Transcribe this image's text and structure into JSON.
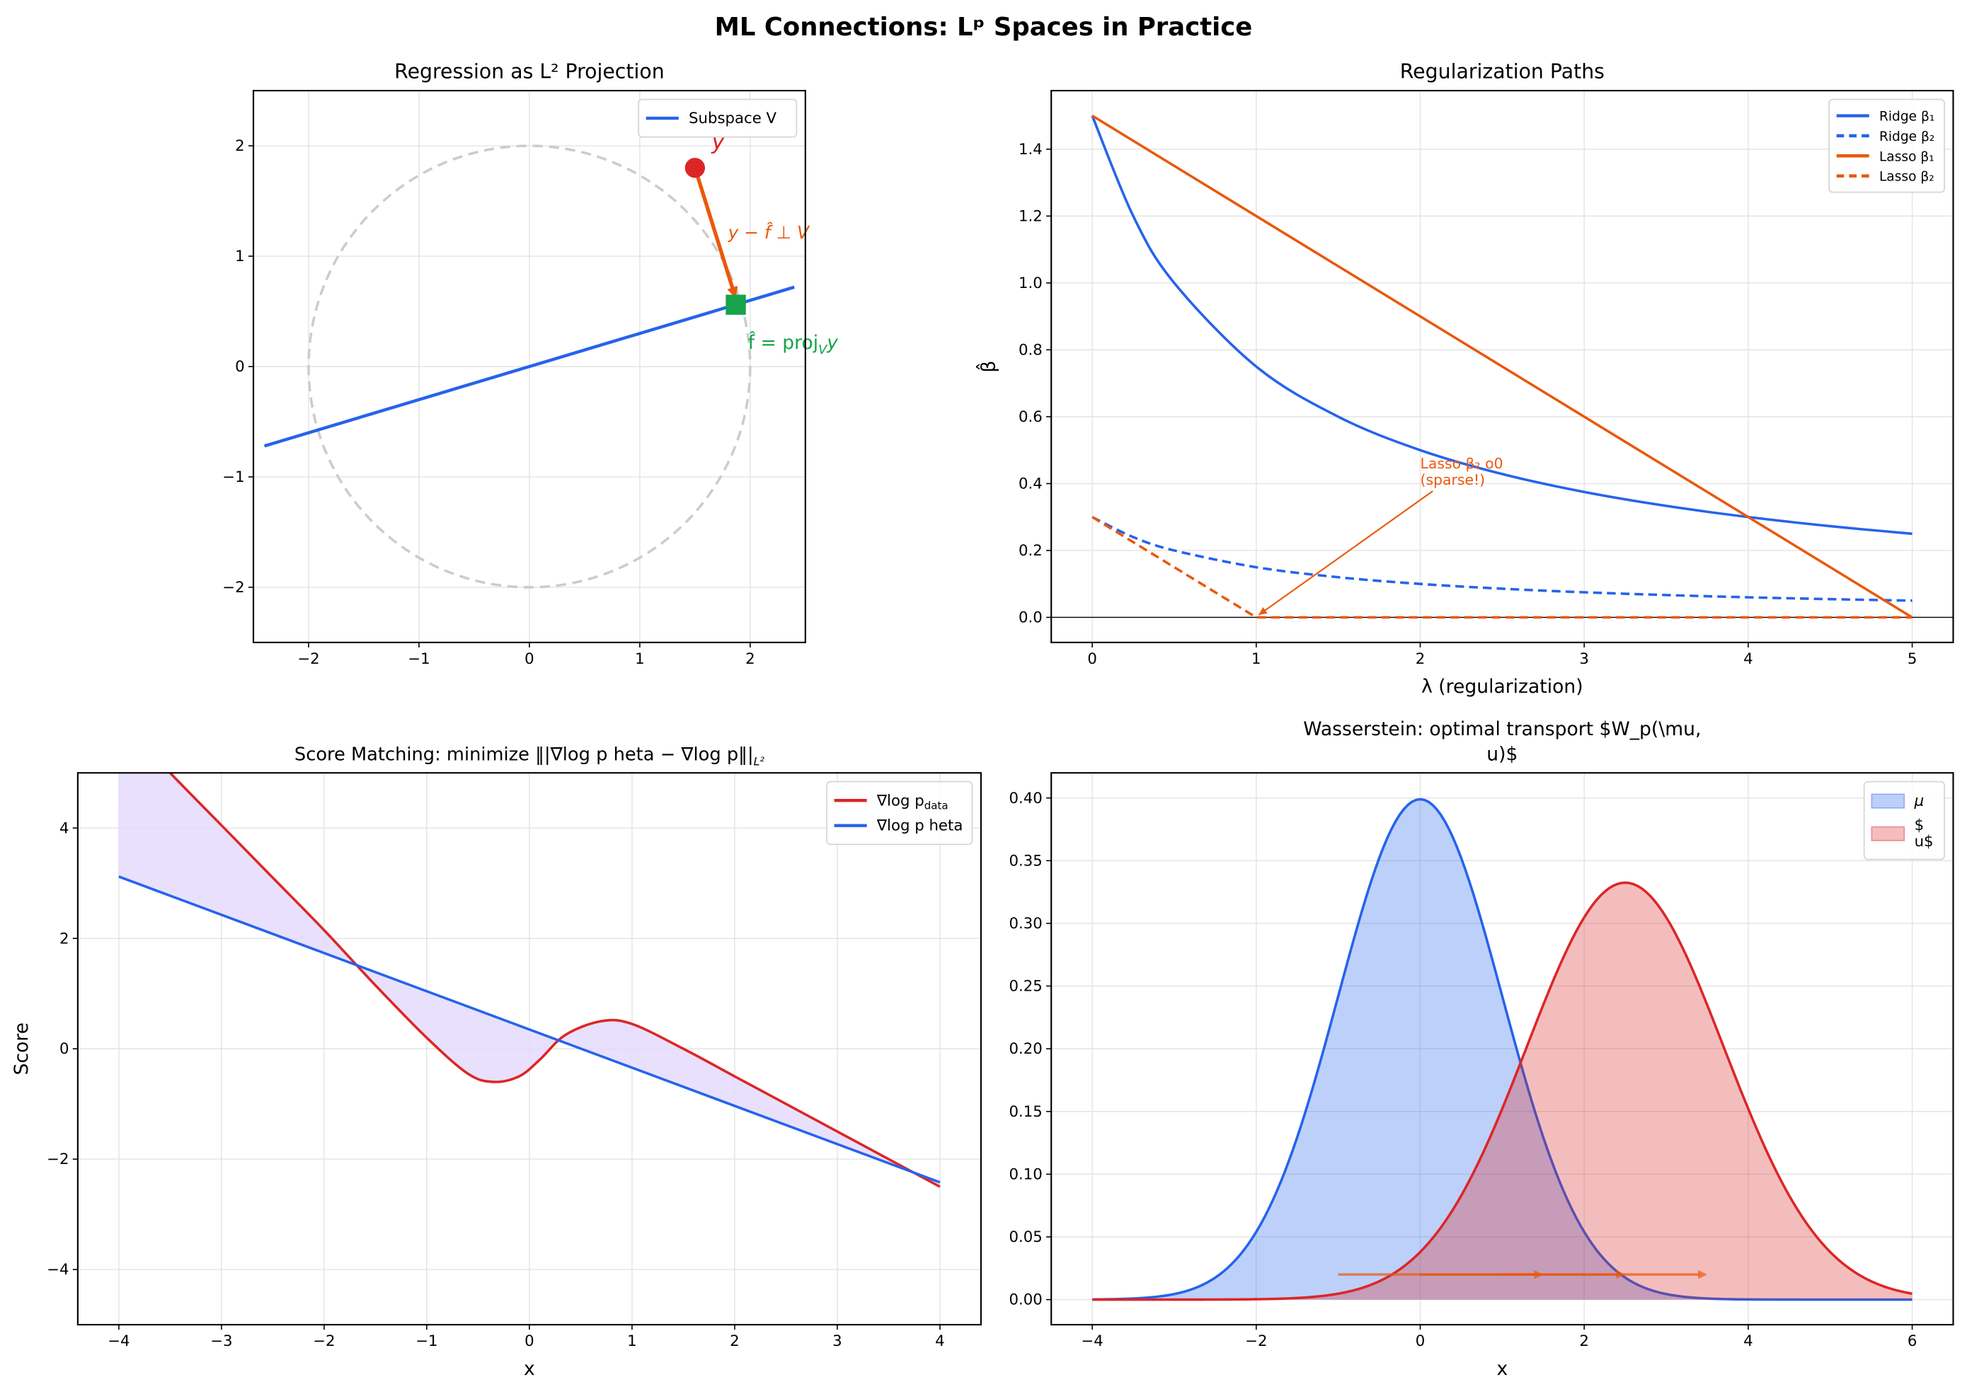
{
  "figure": {
    "title": "ML Connections: Lᵖ Spaces in Practice"
  },
  "colors": {
    "blue": "#2563eb",
    "red": "#dc2626",
    "orange": "#ea580c",
    "green": "#16a34a",
    "purple_fill": "#e4dafb",
    "circle": "#cccccc"
  },
  "chart_data": [
    {
      "type": "line",
      "title": "Regression as L² Projection",
      "xlabel": "",
      "ylabel": "",
      "xlim": [
        -2.5,
        2.5
      ],
      "ylim": [
        -2.5,
        2.5
      ],
      "grid": true,
      "legend_placement": "top-right",
      "xticks": [
        -2,
        -1,
        0,
        1,
        2
      ],
      "xtick_labels": [
        "−2",
        "−1",
        "0",
        "1",
        "2"
      ],
      "yticks": [
        -2,
        -1,
        0,
        1,
        2
      ],
      "ytick_labels": [
        "−2",
        "−1",
        "0",
        "1",
        "2"
      ],
      "series": [
        {
          "name": "Subspace V",
          "color": "#2563eb",
          "style": "solid",
          "width": 2.5,
          "points": [
            [
              -2.4,
              -0.72
            ],
            [
              2.4,
              0.72
            ]
          ]
        }
      ],
      "unit_circle": {
        "radius": 2,
        "color": "#cccccc",
        "style": "dashed"
      },
      "y_point": {
        "x": 1.5,
        "y": 1.8,
        "color": "#dc2626",
        "label": "y"
      },
      "projection": {
        "x": 1.87,
        "y": 0.56,
        "color": "#16a34a",
        "label_parts": [
          "f̂ = proj",
          "V",
          "y"
        ]
      },
      "residual_arrow": {
        "color": "#ea580c",
        "label": "y − f̂ ⊥ V"
      }
    },
    {
      "type": "line",
      "title": "Regularization Paths",
      "xlabel": "λ (regularization)",
      "ylabel": "β̂",
      "xlim": [
        -0.25,
        5.25
      ],
      "ylim": [
        -0.075,
        1.575
      ],
      "grid": true,
      "legend_placement": "top-right",
      "xticks": [
        0,
        1,
        2,
        3,
        4,
        5
      ],
      "xtick_labels": [
        "0",
        "1",
        "2",
        "3",
        "4",
        "5"
      ],
      "yticks": [
        0,
        0.2,
        0.4,
        0.6,
        0.8,
        1.0,
        1.2,
        1.4
      ],
      "ytick_labels": [
        "0.0",
        "0.2",
        "0.4",
        "0.6",
        "0.8",
        "1.0",
        "1.2",
        "1.4"
      ],
      "hline": 0,
      "series": [
        {
          "name": "Ridge β₁",
          "color": "#2563eb",
          "style": "solid",
          "smooth": true,
          "points": [
            [
              0,
              1.5
            ],
            [
              0.25,
              1.2
            ],
            [
              0.5,
              1.0
            ],
            [
              1,
              0.75
            ],
            [
              1.5,
              0.6
            ],
            [
              2,
              0.5
            ],
            [
              2.5,
              0.4286
            ],
            [
              3,
              0.375
            ],
            [
              3.5,
              0.3333
            ],
            [
              4,
              0.3
            ],
            [
              4.5,
              0.2727
            ],
            [
              5,
              0.25
            ]
          ]
        },
        {
          "name": "Ridge β₂",
          "color": "#2563eb",
          "style": "dashed",
          "smooth": true,
          "points": [
            [
              0,
              0.3
            ],
            [
              0.25,
              0.24
            ],
            [
              0.5,
              0.2
            ],
            [
              1,
              0.15
            ],
            [
              1.5,
              0.12
            ],
            [
              2,
              0.1
            ],
            [
              2.5,
              0.0857
            ],
            [
              3,
              0.075
            ],
            [
              3.5,
              0.0667
            ],
            [
              4,
              0.06
            ],
            [
              4.5,
              0.0545
            ],
            [
              5,
              0.05
            ]
          ]
        },
        {
          "name": "Lasso β₁",
          "color": "#ea580c",
          "style": "solid",
          "points": [
            [
              0,
              1.5
            ],
            [
              5,
              0
            ]
          ]
        },
        {
          "name": "Lasso β₂",
          "color": "#ea580c",
          "style": "dashed",
          "points": [
            [
              0,
              0.3
            ],
            [
              1,
              0
            ],
            [
              5,
              0
            ]
          ]
        }
      ],
      "annotation": {
        "lines": [
          "Lasso β₂ o0",
          "(sparse!)"
        ],
        "text_at": [
          2,
          0.43
        ],
        "arrow_to": [
          1,
          0
        ],
        "color": "#ea580c"
      }
    },
    {
      "type": "line",
      "title_parts": [
        "Score Matching: minimize ‖|∇log p heta − ∇log p‖|",
        "L²"
      ],
      "xlabel": "x",
      "ylabel": "Score",
      "xlim": [
        -4.4,
        4.4
      ],
      "ylim": [
        -5,
        5
      ],
      "grid": true,
      "legend_placement": "top-right",
      "xticks": [
        -4,
        -3,
        -2,
        -1,
        0,
        1,
        2,
        3,
        4
      ],
      "xtick_labels": [
        "−4",
        "−3",
        "−2",
        "−1",
        "0",
        "1",
        "2",
        "3",
        "4"
      ],
      "yticks": [
        -4,
        -2,
        0,
        2,
        4
      ],
      "ytick_labels": [
        "−4",
        "−2",
        "0",
        "2",
        "4"
      ],
      "fill_between": {
        "color": "#e4dafb"
      },
      "series": [
        {
          "name_parts": [
            "∇log p",
            "data"
          ],
          "color": "#dc2626",
          "style": "solid",
          "smooth": true,
          "points": [
            [
              -4,
              6.0
            ],
            [
              -3.5,
              5.0
            ],
            [
              -3,
              4.05
            ],
            [
              -2.5,
              3.1
            ],
            [
              -2,
              2.15
            ],
            [
              -1.5,
              1.15
            ],
            [
              -1,
              0.2
            ],
            [
              -0.6,
              -0.45
            ],
            [
              -0.35,
              -0.6
            ],
            [
              -0.1,
              -0.5
            ],
            [
              0.1,
              -0.2
            ],
            [
              0.35,
              0.25
            ],
            [
              0.7,
              0.5
            ],
            [
              1,
              0.45
            ],
            [
              1.5,
              0.0
            ],
            [
              2,
              -0.5
            ],
            [
              2.5,
              -1.0
            ],
            [
              3,
              -1.5
            ],
            [
              3.5,
              -2.0
            ],
            [
              4,
              -2.5
            ]
          ]
        },
        {
          "name_parts": [
            "∇log p heta",
            ""
          ],
          "color": "#2563eb",
          "style": "solid",
          "points": [
            [
              -4,
              3.12
            ],
            [
              4,
              -2.42
            ]
          ]
        }
      ]
    },
    {
      "type": "area",
      "title_lines": [
        "Wasserstein: optimal transport $W_p(\\mu,",
        "u)$"
      ],
      "xlabel": "x",
      "ylabel": "",
      "xlim": [
        -4.5,
        6.5
      ],
      "ylim": [
        -0.02,
        0.42
      ],
      "grid": true,
      "legend_placement": "top-right",
      "xticks": [
        -4,
        -2,
        0,
        2,
        4,
        6
      ],
      "xtick_labels": [
        "−4",
        "−2",
        "0",
        "2",
        "4",
        "6"
      ],
      "yticks": [
        0,
        0.05,
        0.1,
        0.15,
        0.2,
        0.25,
        0.3,
        0.35,
        0.4
      ],
      "ytick_labels": [
        "0.00",
        "0.05",
        "0.10",
        "0.15",
        "0.20",
        "0.25",
        "0.30",
        "0.35",
        "0.40"
      ],
      "x_range": [
        -4,
        6
      ],
      "series": [
        {
          "name_lines": [
            "μ"
          ],
          "distribution": "normal",
          "mean": 0,
          "std": 1,
          "color": "#2563eb",
          "fill": "#2563eb",
          "fill_alpha": 0.3
        },
        {
          "name_lines": [
            "$",
            "u$"
          ],
          "distribution": "normal",
          "mean": 2.5,
          "std": 1.2,
          "color": "#dc2626",
          "fill": "#dc2626",
          "fill_alpha": 0.3
        }
      ],
      "transport_arrows": {
        "color": "#ea580c",
        "y": 0.02,
        "segments": [
          [
            -1,
            1.5
          ],
          [
            0,
            2.5
          ],
          [
            1,
            3.5
          ]
        ]
      }
    }
  ]
}
